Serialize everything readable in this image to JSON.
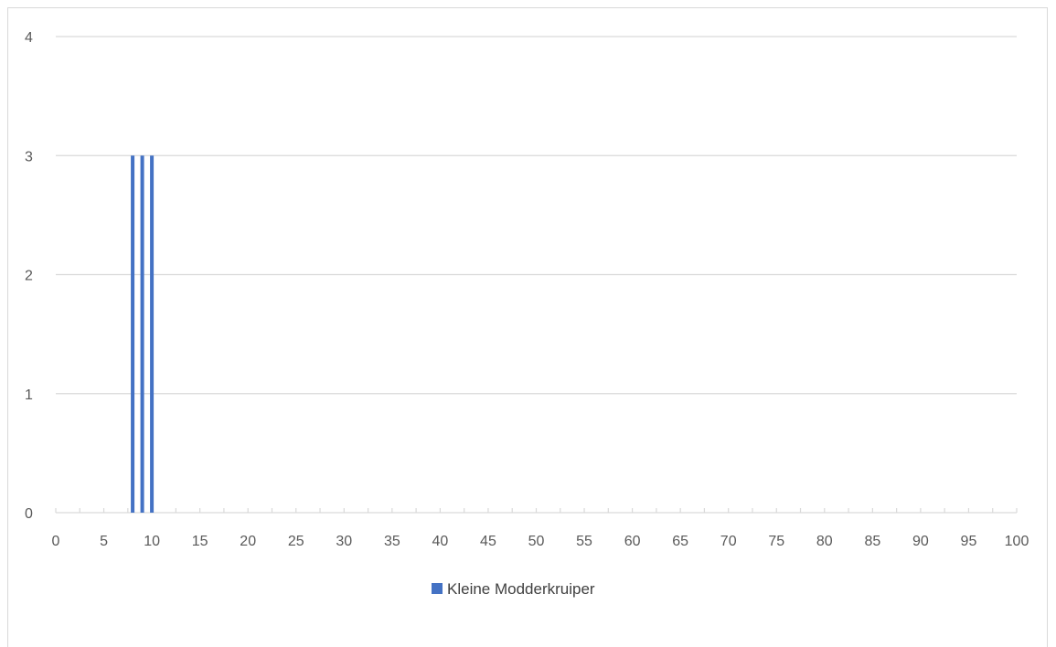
{
  "chart_data": {
    "type": "bar",
    "series": [
      {
        "name": "Kleine Modderkruiper",
        "color": "#4472c4",
        "points": [
          {
            "x": 8,
            "y": 3
          },
          {
            "x": 9,
            "y": 3
          },
          {
            "x": 10,
            "y": 3
          }
        ]
      }
    ],
    "xlim": [
      0,
      100
    ],
    "ylim": [
      0,
      4
    ],
    "x_ticks": [
      "0",
      "5",
      "10",
      "15",
      "20",
      "25",
      "30",
      "35",
      "40",
      "45",
      "50",
      "55",
      "60",
      "65",
      "70",
      "75",
      "80",
      "85",
      "90",
      "95",
      "100"
    ],
    "y_ticks": [
      "0",
      "1",
      "2",
      "3",
      "4"
    ],
    "grid": true,
    "legend_position": "bottom",
    "gridline_color": "#d9d9d9",
    "axis_color": "#d9d9d9"
  }
}
